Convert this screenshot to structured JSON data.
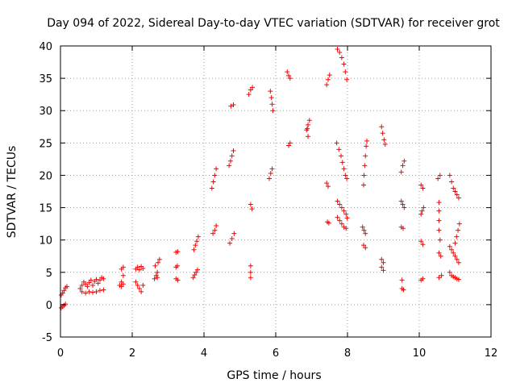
{
  "chart_data": {
    "type": "scatter",
    "title": "Day 094 of 2022, Sidereal Day-to-day VTEC variation (SDTVAR) for receiver grot",
    "xlabel": "GPS time / hours",
    "ylabel": "SDTVAR / TECUs",
    "xlim": [
      0,
      12
    ],
    "ylim": [
      -5,
      40
    ],
    "xticks": [
      0,
      2,
      4,
      6,
      8,
      10,
      12
    ],
    "xtick_labels": [
      "0",
      "2",
      "4",
      "6",
      "8",
      "10",
      "12"
    ],
    "yticks": [
      -5,
      0,
      5,
      10,
      15,
      20,
      25,
      30,
      35,
      40
    ],
    "ytick_labels": [
      "-5",
      "0",
      "5",
      "10",
      "15",
      "20",
      "25",
      "30",
      "35",
      "40"
    ],
    "grid": true,
    "marker": "+",
    "color": "#ff0000",
    "series": [
      {
        "name": "SDTVAR",
        "points": [
          [
            0.02,
            1.5
          ],
          [
            0.06,
            1.8
          ],
          [
            0.1,
            2.2
          ],
          [
            0.14,
            2.6
          ],
          [
            0.18,
            2.8
          ],
          [
            0.02,
            -0.5
          ],
          [
            0.06,
            -0.3
          ],
          [
            0.1,
            -0.1
          ],
          [
            0.14,
            0.1
          ],
          [
            0.55,
            2.5
          ],
          [
            0.6,
            3.0
          ],
          [
            0.65,
            3.5
          ],
          [
            0.7,
            3.2
          ],
          [
            0.75,
            2.8
          ],
          [
            0.8,
            3.4
          ],
          [
            0.85,
            3.8
          ],
          [
            0.9,
            3.0
          ],
          [
            0.95,
            3.6
          ],
          [
            1.0,
            3.9
          ],
          [
            1.05,
            3.3
          ],
          [
            1.1,
            3.8
          ],
          [
            1.15,
            4.2
          ],
          [
            1.2,
            4.0
          ],
          [
            0.6,
            2.0
          ],
          [
            0.7,
            1.8
          ],
          [
            0.8,
            2.0
          ],
          [
            0.9,
            1.9
          ],
          [
            1.0,
            2.0
          ],
          [
            1.1,
            2.2
          ],
          [
            1.2,
            2.3
          ],
          [
            1.65,
            3.0
          ],
          [
            1.7,
            3.5
          ],
          [
            1.75,
            4.5
          ],
          [
            1.7,
            5.5
          ],
          [
            1.75,
            5.8
          ],
          [
            1.7,
            2.8
          ],
          [
            1.75,
            3.2
          ],
          [
            2.1,
            5.5
          ],
          [
            2.15,
            5.8
          ],
          [
            2.2,
            5.4
          ],
          [
            2.25,
            5.9
          ],
          [
            2.3,
            5.6
          ],
          [
            2.1,
            3.5
          ],
          [
            2.15,
            3.0
          ],
          [
            2.2,
            2.5
          ],
          [
            2.25,
            2.0
          ],
          [
            2.3,
            3.0
          ],
          [
            2.62,
            4.0
          ],
          [
            2.67,
            4.5
          ],
          [
            2.7,
            5.0
          ],
          [
            2.72,
            6.5
          ],
          [
            2.76,
            7.0
          ],
          [
            2.64,
            6.0
          ],
          [
            2.7,
            4.2
          ],
          [
            3.22,
            8.1
          ],
          [
            3.27,
            8.2
          ],
          [
            3.22,
            5.8
          ],
          [
            3.26,
            6.0
          ],
          [
            3.22,
            4.0
          ],
          [
            3.27,
            3.8
          ],
          [
            3.7,
            4.2
          ],
          [
            3.74,
            4.6
          ],
          [
            3.78,
            5.0
          ],
          [
            3.82,
            5.4
          ],
          [
            3.72,
            8.5
          ],
          [
            3.76,
            9.2
          ],
          [
            3.8,
            9.8
          ],
          [
            3.84,
            10.5
          ],
          [
            4.22,
            18.0
          ],
          [
            4.26,
            19.0
          ],
          [
            4.3,
            20.0
          ],
          [
            4.34,
            21.0
          ],
          [
            4.25,
            11.0
          ],
          [
            4.3,
            11.5
          ],
          [
            4.34,
            12.2
          ],
          [
            4.7,
            21.5
          ],
          [
            4.74,
            22.2
          ],
          [
            4.78,
            23.0
          ],
          [
            4.82,
            23.8
          ],
          [
            4.75,
            30.7
          ],
          [
            4.82,
            30.9
          ],
          [
            4.72,
            9.5
          ],
          [
            4.78,
            10.2
          ],
          [
            4.84,
            11.0
          ],
          [
            5.25,
            32.5
          ],
          [
            5.3,
            33.2
          ],
          [
            5.35,
            33.6
          ],
          [
            5.3,
            15.5
          ],
          [
            5.34,
            14.8
          ],
          [
            5.3,
            6.0
          ],
          [
            5.3,
            5.0
          ],
          [
            5.3,
            4.2
          ],
          [
            5.85,
            33.0
          ],
          [
            5.88,
            32.0
          ],
          [
            5.9,
            31.0
          ],
          [
            5.92,
            30.0
          ],
          [
            5.82,
            19.5
          ],
          [
            5.86,
            20.3
          ],
          [
            5.9,
            21.0
          ],
          [
            6.32,
            36.0
          ],
          [
            6.36,
            35.4
          ],
          [
            6.4,
            35.0
          ],
          [
            6.36,
            24.6
          ],
          [
            6.4,
            25.0
          ],
          [
            6.86,
            27.0
          ],
          [
            6.9,
            27.8
          ],
          [
            6.94,
            28.5
          ],
          [
            6.9,
            26.0
          ],
          [
            6.88,
            27.2
          ],
          [
            7.42,
            34.0
          ],
          [
            7.46,
            34.8
          ],
          [
            7.5,
            35.5
          ],
          [
            7.42,
            18.8
          ],
          [
            7.46,
            18.3
          ],
          [
            7.48,
            12.6
          ],
          [
            7.44,
            12.8
          ],
          [
            7.72,
            39.5
          ],
          [
            7.78,
            39.0
          ],
          [
            7.84,
            38.2
          ],
          [
            7.9,
            37.2
          ],
          [
            7.94,
            36.0
          ],
          [
            7.98,
            34.8
          ],
          [
            7.7,
            25.0
          ],
          [
            7.76,
            24.0
          ],
          [
            7.82,
            23.0
          ],
          [
            7.86,
            22.0
          ],
          [
            7.9,
            21.0
          ],
          [
            7.94,
            20.0
          ],
          [
            7.98,
            19.5
          ],
          [
            7.72,
            16.0
          ],
          [
            7.78,
            15.5
          ],
          [
            7.84,
            15.0
          ],
          [
            7.9,
            14.5
          ],
          [
            7.96,
            14.0
          ],
          [
            7.99,
            13.4
          ],
          [
            7.72,
            13.5
          ],
          [
            7.78,
            13.0
          ],
          [
            7.84,
            12.5
          ],
          [
            7.9,
            12.0
          ],
          [
            7.96,
            11.8
          ],
          [
            8.42,
            12.0
          ],
          [
            8.46,
            11.5
          ],
          [
            8.5,
            11.0
          ],
          [
            8.45,
            9.2
          ],
          [
            8.5,
            8.8
          ],
          [
            8.45,
            18.5
          ],
          [
            8.46,
            20.0
          ],
          [
            8.48,
            21.5
          ],
          [
            8.5,
            23.0
          ],
          [
            8.52,
            24.5
          ],
          [
            8.54,
            25.3
          ],
          [
            8.95,
            27.5
          ],
          [
            8.98,
            26.5
          ],
          [
            9.02,
            25.5
          ],
          [
            9.05,
            24.8
          ],
          [
            8.95,
            7.0
          ],
          [
            9.0,
            6.5
          ],
          [
            8.95,
            5.8
          ],
          [
            9.0,
            5.3
          ],
          [
            9.5,
            20.5
          ],
          [
            9.54,
            21.5
          ],
          [
            9.58,
            22.2
          ],
          [
            9.5,
            16.0
          ],
          [
            9.54,
            15.5
          ],
          [
            9.58,
            15.0
          ],
          [
            9.5,
            12.0
          ],
          [
            9.55,
            11.8
          ],
          [
            9.52,
            3.8
          ],
          [
            9.52,
            2.5
          ],
          [
            9.56,
            2.3
          ],
          [
            10.05,
            18.5
          ],
          [
            10.1,
            18.0
          ],
          [
            10.05,
            14.0
          ],
          [
            10.08,
            14.5
          ],
          [
            10.12,
            15.0
          ],
          [
            10.05,
            9.8
          ],
          [
            10.1,
            9.3
          ],
          [
            10.05,
            3.8
          ],
          [
            10.1,
            4.0
          ],
          [
            10.52,
            19.5
          ],
          [
            10.58,
            20.0
          ],
          [
            10.55,
            15.8
          ],
          [
            10.55,
            14.5
          ],
          [
            10.55,
            13.0
          ],
          [
            10.55,
            11.5
          ],
          [
            10.58,
            10.0
          ],
          [
            10.55,
            8.0
          ],
          [
            10.6,
            7.5
          ],
          [
            10.55,
            4.2
          ],
          [
            10.62,
            4.5
          ],
          [
            10.85,
            20.0
          ],
          [
            10.9,
            19.0
          ],
          [
            10.95,
            18.0
          ],
          [
            11.0,
            17.5
          ],
          [
            11.05,
            17.0
          ],
          [
            11.1,
            16.5
          ],
          [
            10.85,
            9.0
          ],
          [
            10.9,
            8.5
          ],
          [
            10.95,
            8.0
          ],
          [
            11.0,
            7.5
          ],
          [
            11.05,
            7.0
          ],
          [
            11.1,
            6.5
          ],
          [
            11.0,
            9.5
          ],
          [
            11.04,
            10.5
          ],
          [
            11.08,
            11.5
          ],
          [
            11.12,
            12.5
          ],
          [
            10.85,
            5.0
          ],
          [
            10.9,
            4.5
          ],
          [
            10.95,
            4.3
          ],
          [
            11.0,
            4.2
          ],
          [
            11.05,
            4.0
          ],
          [
            11.1,
            3.9
          ]
        ]
      }
    ]
  }
}
